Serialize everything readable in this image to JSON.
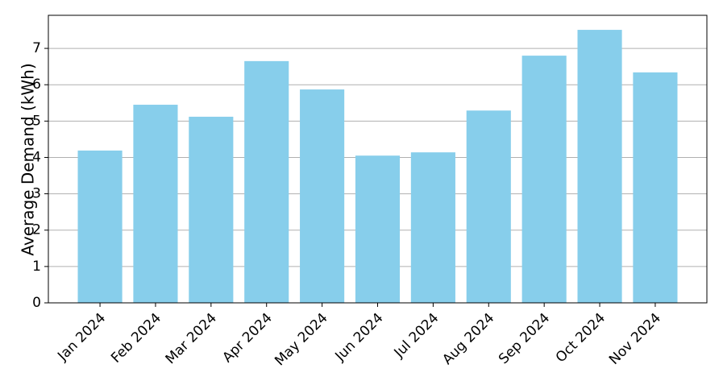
{
  "chart_data": {
    "type": "bar",
    "y_label": "Average Demand (kWh)",
    "categories": [
      "Jan 2024",
      "Feb 2024",
      "Mar 2024",
      "Apr 2024",
      "May 2024",
      "Jun 2024",
      "Jul 2024",
      "Aug 2024",
      "Sep 2024",
      "Oct 2024",
      "Nov 2024"
    ],
    "values": [
      4.19,
      5.45,
      5.12,
      6.65,
      5.87,
      4.05,
      4.14,
      5.29,
      6.8,
      7.51,
      6.34
    ],
    "color": "#87ceeb",
    "ylim": [
      0,
      7.91
    ],
    "yticks": [
      0,
      1,
      2,
      3,
      4,
      5,
      6,
      7
    ],
    "grid": true
  }
}
